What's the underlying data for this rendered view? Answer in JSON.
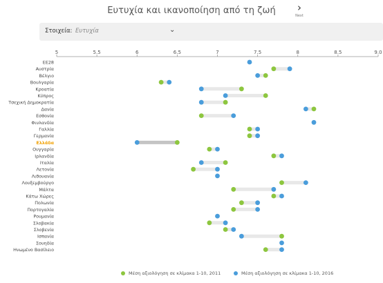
{
  "header": {
    "title": "Ευτυχία και ικανοποίηση από τη ζωή"
  },
  "nav": {
    "next_label": "Next",
    "next_icon": "chevron-right-icon"
  },
  "filter": {
    "label": "Στοιχεία:",
    "value": "Ευτυχία",
    "caret_icon": "chevron-down-icon"
  },
  "colors": {
    "series_2011": "#8dc63f",
    "series_2016": "#4a9ddb",
    "range_bar": "#e8e8e8",
    "highlight_bar": "#c4c4c4",
    "highlight_label": "#f0a000"
  },
  "chart_data": {
    "type": "dot-range",
    "title": "",
    "xlim": [
      5,
      9
    ],
    "xticks": [
      "5",
      "5.5",
      "6",
      "6.5",
      "7",
      "7.5",
      "8",
      "8.5",
      "9.0"
    ],
    "tick_values": [
      5,
      5.5,
      6,
      6.5,
      7,
      7.5,
      8,
      8.5,
      9
    ],
    "highlight": "Ελλάδα",
    "categories": [
      "ΕΕ28",
      "Αυστρία",
      "Βέλγιο",
      "Βουλγαρία",
      "Κροατία",
      "Κύπρος",
      "Τσεχική Δημοκρατία",
      "Δανία",
      "Εσθονία",
      "Φινλανδία",
      "Γαλλία",
      "Γερμανία",
      "Ελλάδα",
      "Ουγγαρία",
      "Ιρλανδία",
      "Ιταλία",
      "Λετονία",
      "Λιθουανία",
      "Λουξεμβούργο",
      "Μάλτα",
      "Κάτω Χώρες",
      "Πολωνία",
      "Πορτογαλία",
      "Ρουμανία",
      "Σλοβακία",
      "Σλοβενία",
      "Ισπανία",
      "Σουηδία",
      "Ηνωμένο Βασίλειο"
    ],
    "series": [
      {
        "name": "Μέση αξιολόγηση σε κλίμακα 1-10, 2011",
        "color": "#8dc63f",
        "values": [
          null,
          7.7,
          7.6,
          6.3,
          7.3,
          7.6,
          7.1,
          8.2,
          6.8,
          null,
          7.4,
          7.4,
          6.5,
          6.9,
          7.7,
          7.1,
          6.7,
          null,
          7.8,
          7.2,
          7.7,
          7.3,
          7.2,
          null,
          6.9,
          7.1,
          7.8,
          null,
          7.6
        ]
      },
      {
        "name": "Μέση αξιολόγηση σε κλίμακα 1-10, 2016",
        "color": "#4a9ddb",
        "values": [
          7.4,
          7.9,
          7.5,
          6.4,
          6.8,
          7.1,
          6.8,
          8.1,
          7.2,
          8.2,
          7.5,
          7.5,
          6.0,
          7.0,
          7.8,
          6.8,
          7.0,
          7.0,
          8.1,
          7.7,
          7.8,
          7.5,
          7.5,
          7.0,
          7.1,
          7.2,
          7.3,
          7.8,
          7.8
        ]
      }
    ]
  }
}
